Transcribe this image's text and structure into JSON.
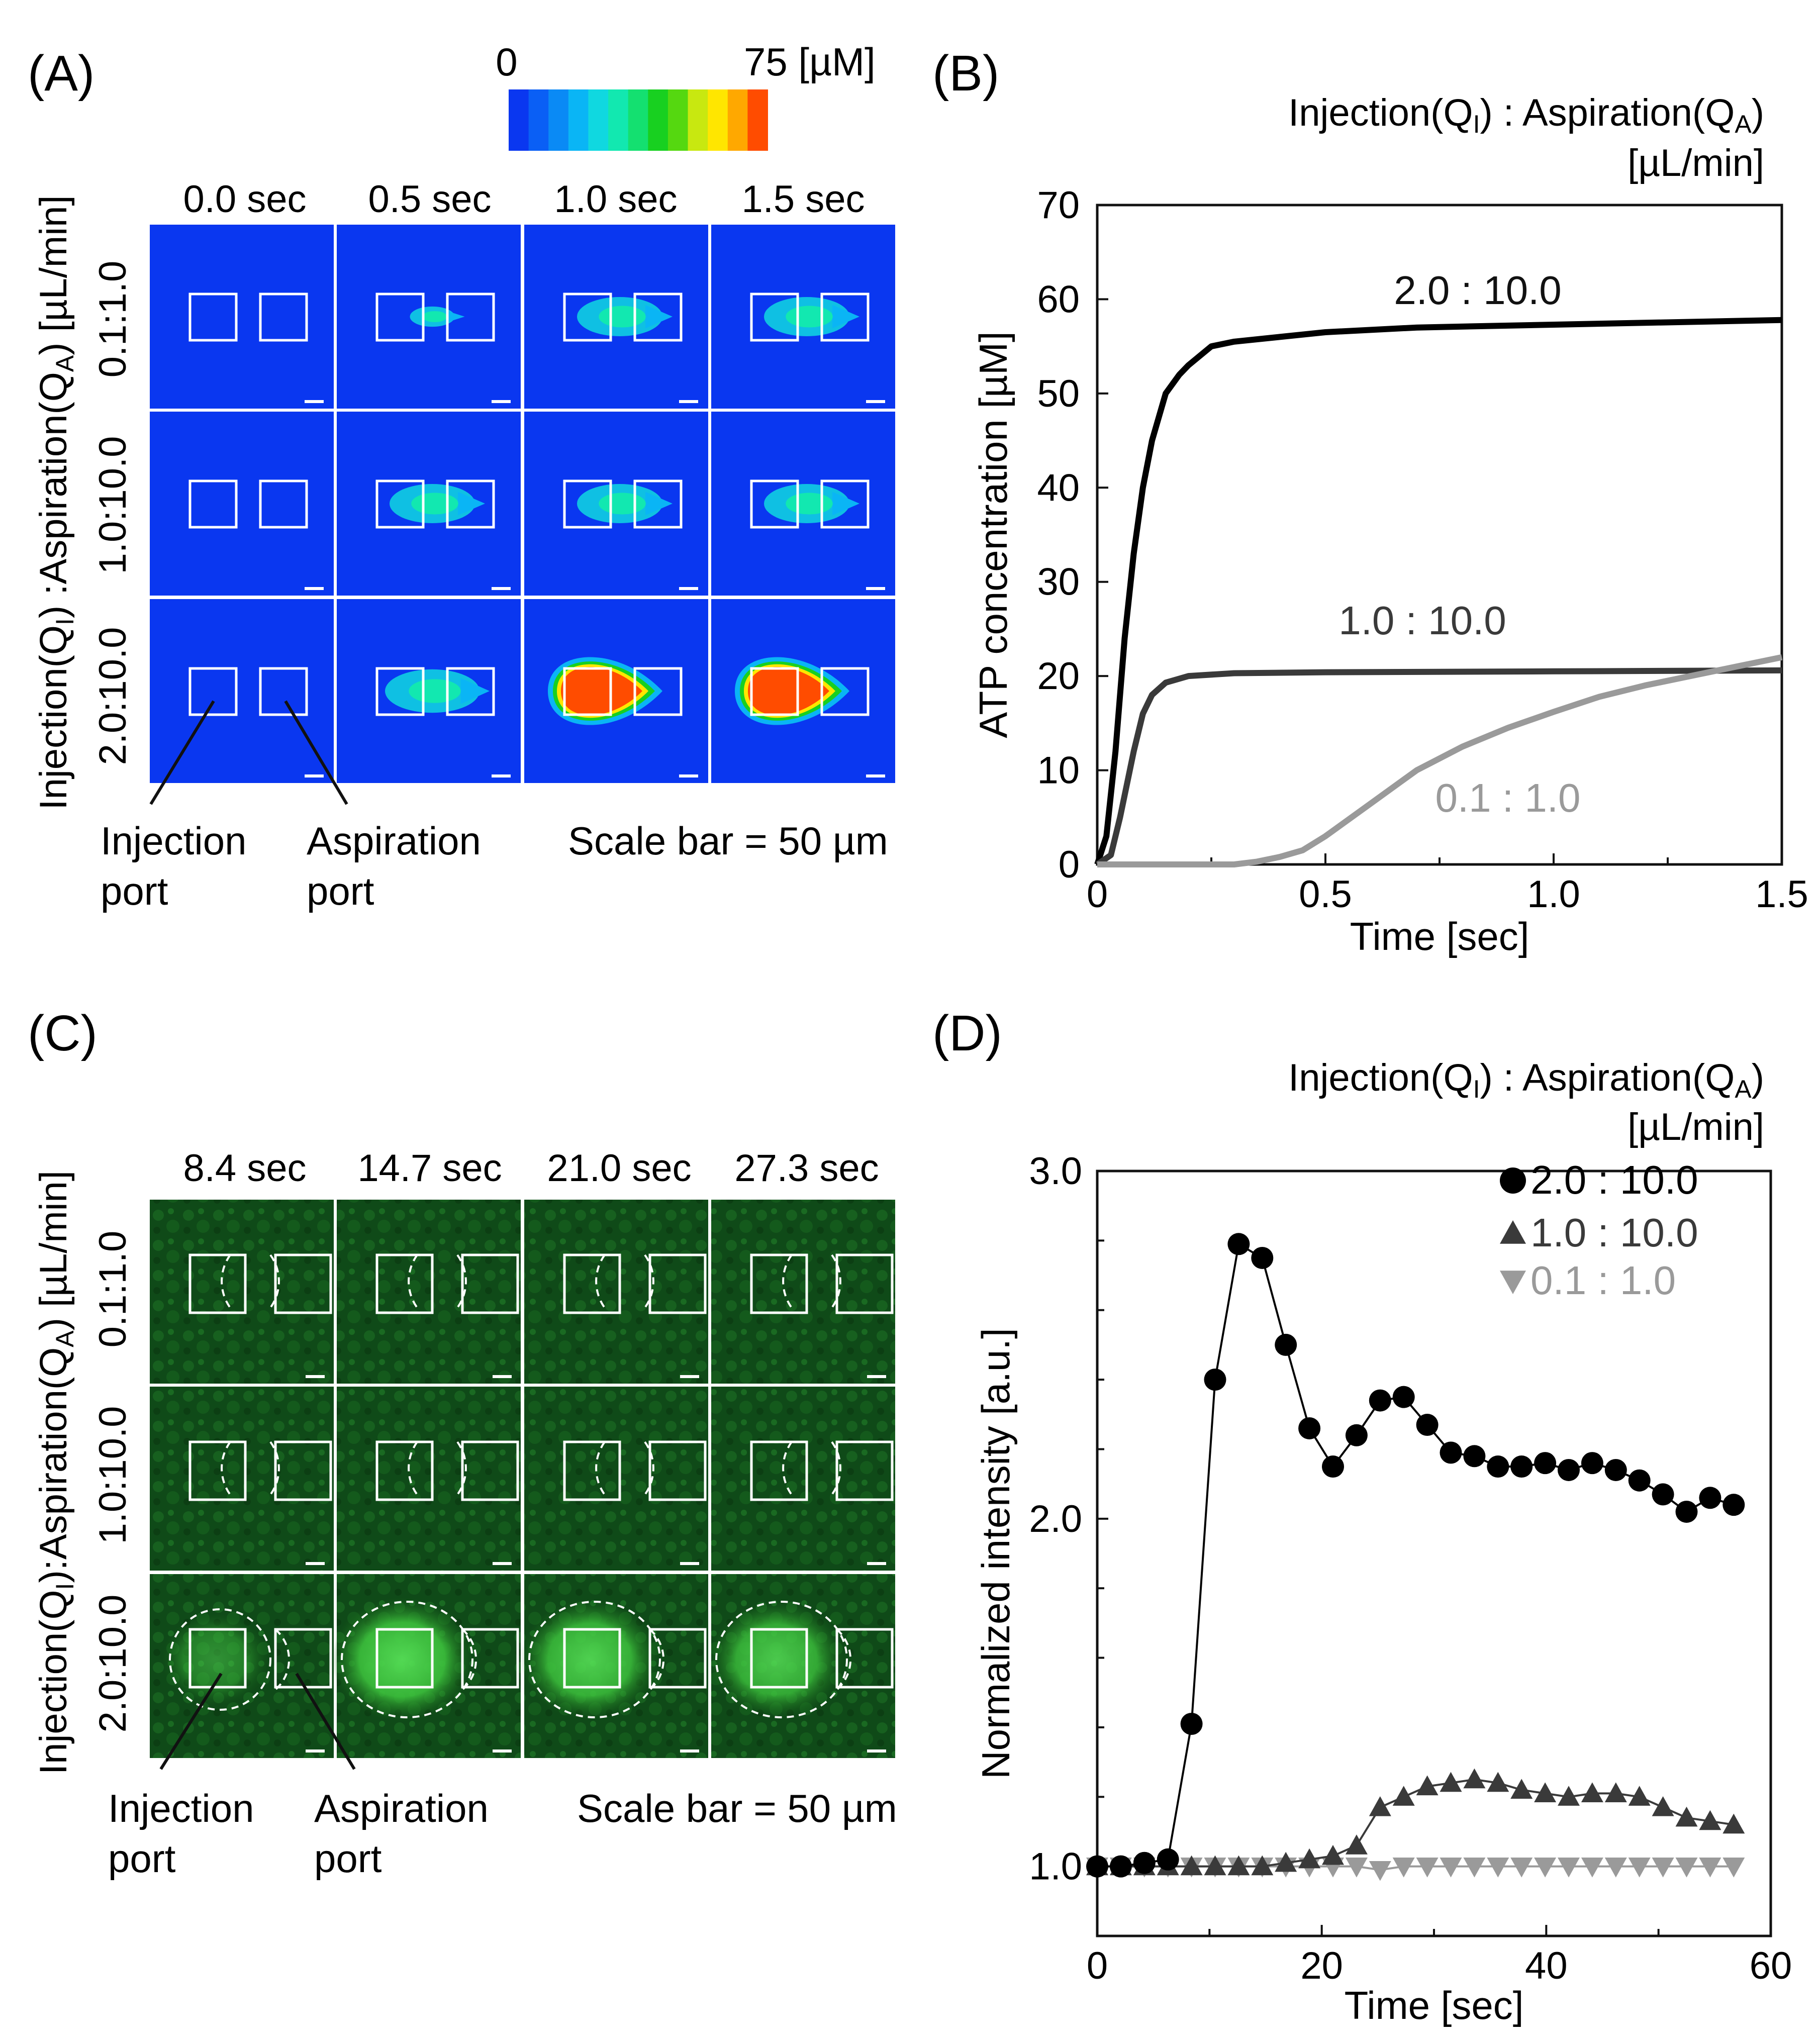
{
  "panel_a": {
    "label": "(A)",
    "colorbar": {
      "min_label": "0",
      "max_label": "75 [µM]",
      "colors": [
        "#0a37f0",
        "#0a5ff5",
        "#0a8af5",
        "#0ab5f5",
        "#10d8e0",
        "#12e8b0",
        "#14e070",
        "#18d020",
        "#55d810",
        "#c8e810",
        "#ffe600",
        "#ffa800",
        "#ff4c00"
      ]
    },
    "time_labels": [
      "0.0 sec",
      "0.5 sec",
      "1.0 sec",
      "1.5 sec"
    ],
    "row_labels": [
      "0.1:1.0",
      "1.0:10.0",
      "2.0:10.0"
    ],
    "axis_label": "Injection(Q",
    "axis_sub1": "I",
    "axis_mid": ") :Aspiration(Q",
    "axis_sub2": "A",
    "axis_end": ") [µL/min]",
    "injection_port": [
      "Injection",
      "port"
    ],
    "aspiration_port": [
      "Aspiration",
      "port"
    ],
    "scale_bar": "Scale bar = 50 µm",
    "background_color": "#0a37f0",
    "plume": [
      [
        0,
        0.05,
        0.5,
        0.5
      ],
      [
        0,
        0.5,
        0.5,
        0.5
      ],
      [
        0,
        0.6,
        1,
        1
      ]
    ]
  },
  "panel_b": {
    "label": "(B)",
    "legend_title": "Injection(Q",
    "legend_sub1": "I",
    "legend_mid": ") : Aspiration(Q",
    "legend_sub2": "A",
    "legend_end": ")",
    "legend_units": "[µL/min]",
    "chart_data": {
      "type": "line",
      "xlabel": "Time [sec]",
      "ylabel": "ATP concentration [µM]",
      "xlim": [
        0,
        1.5
      ],
      "ylim": [
        0,
        70
      ],
      "xticks": [
        "0",
        "0.5",
        "1.0",
        "1.5"
      ],
      "yticks": [
        "0",
        "10",
        "20",
        "30",
        "40",
        "50",
        "60",
        "70"
      ],
      "series": [
        {
          "name": "2.0 : 10.0",
          "color": "#000000",
          "x": [
            0,
            0.02,
            0.04,
            0.06,
            0.08,
            0.1,
            0.12,
            0.15,
            0.18,
            0.2,
            0.25,
            0.3,
            0.4,
            0.5,
            0.7,
            1.0,
            1.2,
            1.5
          ],
          "y": [
            0,
            3,
            12,
            24,
            33,
            40,
            45,
            50,
            52,
            53,
            55,
            55.5,
            56,
            56.5,
            57,
            57.3,
            57.5,
            57.8
          ]
        },
        {
          "name": "1.0 : 10.0",
          "color": "#3a3a3a",
          "x": [
            0,
            0.03,
            0.05,
            0.08,
            0.1,
            0.12,
            0.15,
            0.2,
            0.3,
            0.5,
            1.0,
            1.5
          ],
          "y": [
            0,
            1,
            5,
            12,
            16,
            18,
            19.3,
            20,
            20.3,
            20.4,
            20.5,
            20.6
          ]
        },
        {
          "name": "0.1 : 1.0",
          "color": "#9a9a9a",
          "x": [
            0,
            0.3,
            0.35,
            0.4,
            0.45,
            0.5,
            0.6,
            0.7,
            0.8,
            0.9,
            1.0,
            1.1,
            1.2,
            1.3,
            1.4,
            1.5
          ],
          "y": [
            0,
            0,
            0.3,
            0.8,
            1.5,
            3,
            6.5,
            10,
            12.5,
            14.5,
            16.2,
            17.8,
            19,
            20,
            21,
            22
          ]
        }
      ]
    }
  },
  "panel_c": {
    "label": "(C)",
    "time_labels": [
      "8.4 sec",
      "14.7 sec",
      "21.0 sec",
      "27.3 sec"
    ],
    "row_labels": [
      "0.1:1.0",
      "1.0:10.0",
      "2.0:10.0"
    ],
    "axis_label": "Injection(Q",
    "axis_sub1": "I",
    "axis_mid": "):Aspiration(Q",
    "axis_sub2": "A",
    "axis_end": ") [µL/min]",
    "injection_port": [
      "Injection",
      "port"
    ],
    "aspiration_port": [
      "Aspiration",
      "port"
    ],
    "scale_bar": "Scale bar = 50 µm",
    "background_color": "#0d3d14",
    "glow": [
      [
        0,
        0,
        0,
        0
      ],
      [
        0,
        0,
        0,
        0
      ],
      [
        0.45,
        0.9,
        0.85,
        0.8
      ]
    ]
  },
  "panel_d": {
    "label": "(D)",
    "legend_title": "Injection(Q",
    "legend_sub1": "I",
    "legend_mid": ") : Aspiration(Q",
    "legend_sub2": "A",
    "legend_end": ")",
    "legend_units": "[µL/min]",
    "chart_data": {
      "type": "scatter",
      "xlabel": "Time [sec]",
      "ylabel": "Normalized intensity [a.u.]",
      "xlim": [
        0,
        60
      ],
      "ylim": [
        0.8,
        3.0
      ],
      "xticks": [
        "0",
        "20",
        "40",
        "60"
      ],
      "yticks": [
        "1.0",
        "2.0",
        "3.0"
      ],
      "legend_position": "top-right",
      "series": [
        {
          "name": "2.0 : 10.0",
          "color": "#000000",
          "marker": "circle",
          "connected": true,
          "x": [
            0,
            2.1,
            4.2,
            6.3,
            8.4,
            10.5,
            12.6,
            14.7,
            16.8,
            18.9,
            21.0,
            23.1,
            25.2,
            27.3,
            29.4,
            31.5,
            33.6,
            35.7,
            37.8,
            39.9,
            42.0,
            44.1,
            46.2,
            48.3,
            50.4,
            52.5,
            54.6,
            56.7
          ],
          "y": [
            1.0,
            1.0,
            1.01,
            1.02,
            1.41,
            2.4,
            2.79,
            2.75,
            2.5,
            2.26,
            2.15,
            2.24,
            2.34,
            2.35,
            2.27,
            2.19,
            2.18,
            2.15,
            2.15,
            2.16,
            2.14,
            2.16,
            2.14,
            2.11,
            2.07,
            2.02,
            2.06,
            2.04
          ]
        },
        {
          "name": "1.0 : 10.0",
          "color": "#3a3a3a",
          "marker": "triangle-up",
          "connected": true,
          "x": [
            0,
            2.1,
            4.2,
            6.3,
            8.4,
            10.5,
            12.6,
            14.7,
            16.8,
            18.9,
            21.0,
            23.1,
            25.2,
            27.3,
            29.4,
            31.5,
            33.6,
            35.7,
            37.8,
            39.9,
            42.0,
            44.1,
            46.2,
            48.3,
            50.4,
            52.5,
            54.6,
            56.7
          ],
          "y": [
            1.0,
            1.0,
            1.0,
            1.0,
            1.0,
            1.0,
            1.0,
            1.0,
            1.01,
            1.02,
            1.03,
            1.06,
            1.17,
            1.2,
            1.23,
            1.24,
            1.25,
            1.24,
            1.22,
            1.21,
            1.2,
            1.21,
            1.21,
            1.2,
            1.17,
            1.14,
            1.13,
            1.12
          ]
        },
        {
          "name": "0.1 :   1.0",
          "color": "#9a9a9a",
          "marker": "triangle-down",
          "connected": true,
          "x": [
            0,
            2.1,
            4.2,
            6.3,
            8.4,
            10.5,
            12.6,
            14.7,
            16.8,
            18.9,
            21.0,
            23.1,
            25.2,
            27.3,
            29.4,
            31.5,
            33.6,
            35.7,
            37.8,
            39.9,
            42.0,
            44.1,
            46.2,
            48.3,
            50.4,
            52.5,
            54.6,
            56.7
          ],
          "y": [
            1.0,
            1.0,
            1.0,
            1.0,
            1.0,
            1.0,
            1.0,
            1.0,
            1.0,
            1.0,
            1.0,
            1.0,
            0.99,
            1.0,
            1.0,
            1.0,
            1.0,
            1.0,
            1.0,
            1.0,
            1.0,
            1.0,
            1.0,
            1.0,
            1.0,
            1.0,
            1.0,
            1.0
          ]
        }
      ]
    }
  }
}
